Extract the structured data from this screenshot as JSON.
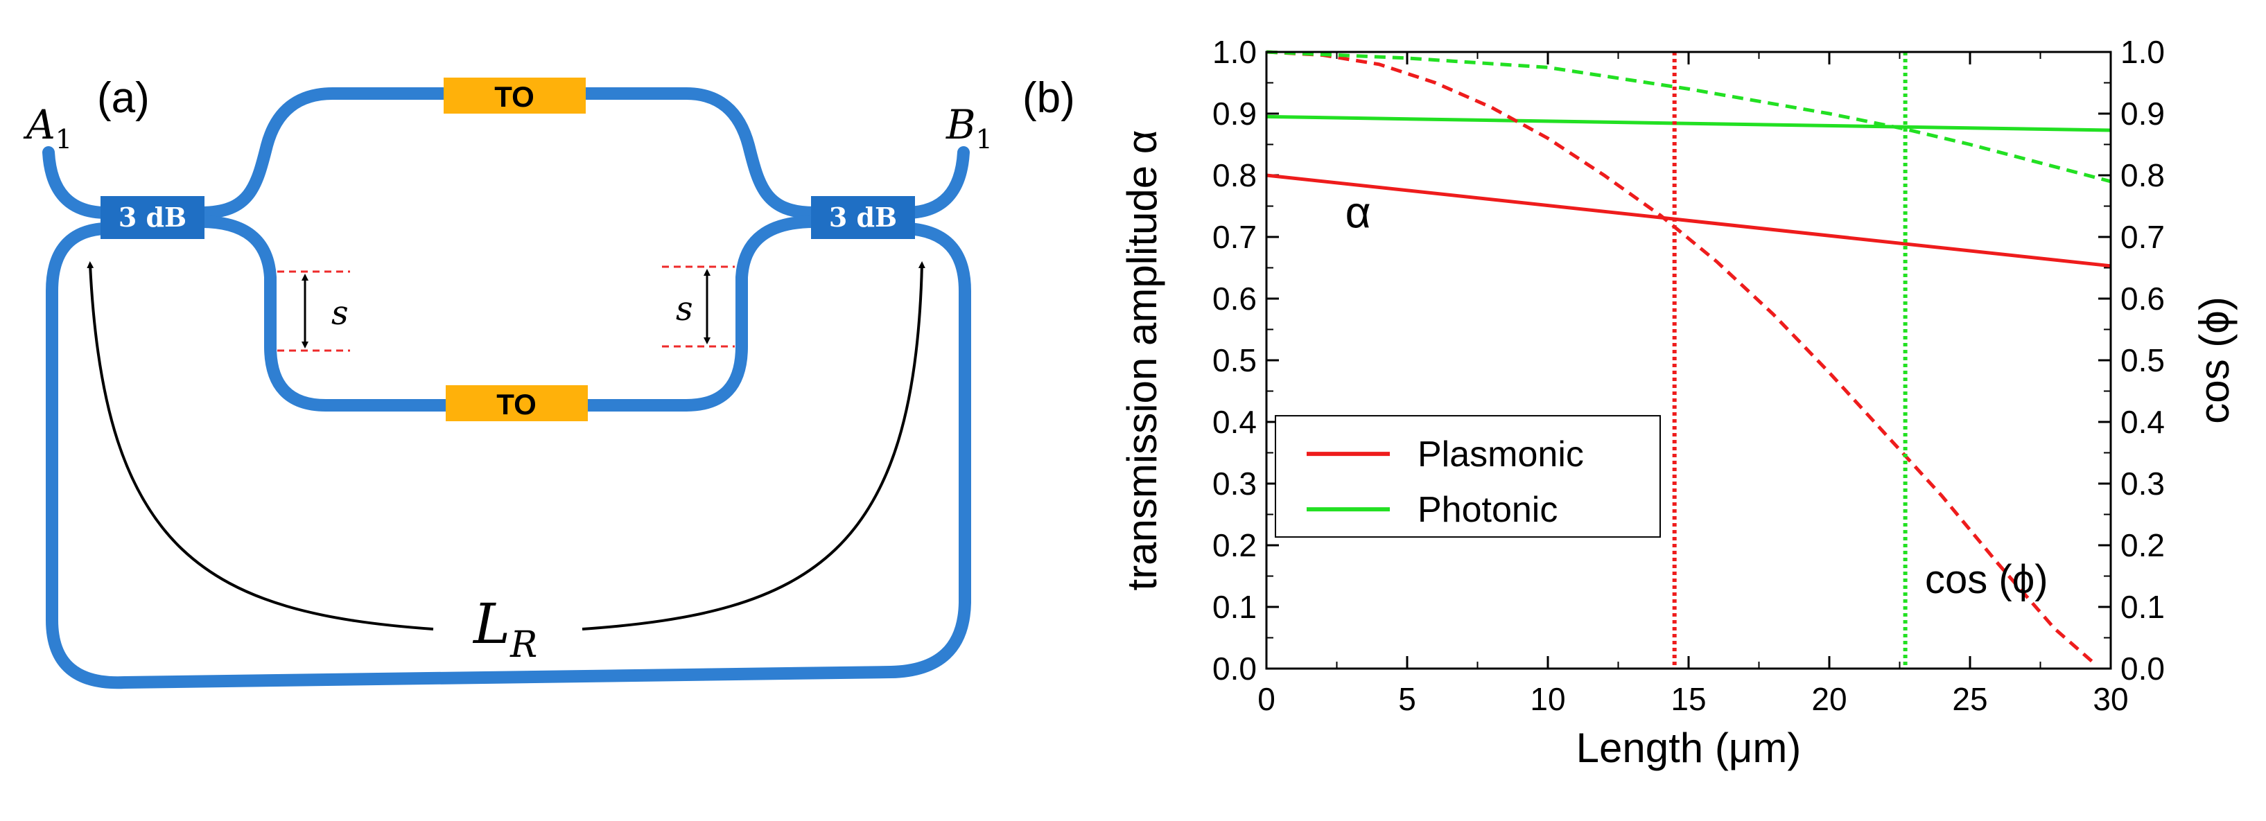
{
  "panel_a": {
    "label": "(a)",
    "port_in": {
      "letter": "A",
      "sub": "1"
    },
    "port_out": {
      "letter": "B",
      "sub": "1"
    },
    "coupler_label": "3 dB",
    "heater_label": "TO",
    "offset_label": "s",
    "length_label": {
      "letter": "L",
      "sub": "R"
    },
    "colors": {
      "waveguide": "#2f7fd2",
      "coupler": "#1f6fc4",
      "heater": "#ffb10a",
      "dashed": "#ee2a2a",
      "arrow": "#000000"
    }
  },
  "panel_b": {
    "label": "(b)",
    "legend": [
      "Plasmonic",
      "Photonic"
    ],
    "curve_labels": {
      "alpha": "α",
      "cos": "cos (ϕ)"
    }
  },
  "chart_data": {
    "type": "line",
    "title": "",
    "xlabel": "Length (μm)",
    "ylabel_left": "transmission amplitude α",
    "ylabel_right": "cos (ϕ)",
    "xlim": [
      0,
      30
    ],
    "ylim": [
      0,
      1.0
    ],
    "xticks": [
      "0",
      "5",
      "10",
      "15",
      "20",
      "25",
      "30"
    ],
    "yticks": [
      "0.0",
      "0.1",
      "0.2",
      "0.3",
      "0.4",
      "0.5",
      "0.6",
      "0.7",
      "0.8",
      "0.9",
      "1.0"
    ],
    "series": [
      {
        "name": "Plasmonic",
        "axis": "left",
        "style": "solid",
        "color": "#ee1c1c",
        "x": [
          0,
          30
        ],
        "y": [
          0.8,
          0.653
        ]
      },
      {
        "name": "Photonic",
        "axis": "left",
        "style": "solid",
        "color": "#22e022",
        "x": [
          0,
          30
        ],
        "y": [
          0.895,
          0.873
        ]
      },
      {
        "name": "Plasmonic cos (ϕ)",
        "axis": "right",
        "style": "dashed",
        "color": "#ee1c1c",
        "x": [
          0,
          2,
          4,
          6,
          8,
          10,
          12,
          14,
          16,
          18,
          20,
          22,
          24,
          26,
          28,
          29.5
        ],
        "y": [
          1.0,
          0.995,
          0.98,
          0.95,
          0.91,
          0.86,
          0.8,
          0.735,
          0.66,
          0.575,
          0.48,
          0.38,
          0.28,
          0.17,
          0.065,
          0.005
        ]
      },
      {
        "name": "Photonic cos (ϕ)",
        "axis": "right",
        "style": "dashed",
        "color": "#22e022",
        "x": [
          0,
          5,
          10,
          15,
          20,
          22.7,
          25,
          30
        ],
        "y": [
          1.0,
          0.99,
          0.975,
          0.94,
          0.9,
          0.875,
          0.85,
          0.79
        ]
      }
    ],
    "vertical_markers": [
      {
        "x": 14.5,
        "color": "#ee1c1c",
        "style": "dotted"
      },
      {
        "x": 22.7,
        "color": "#22e022",
        "style": "dotted"
      }
    ],
    "legend_position": "middle-left"
  }
}
